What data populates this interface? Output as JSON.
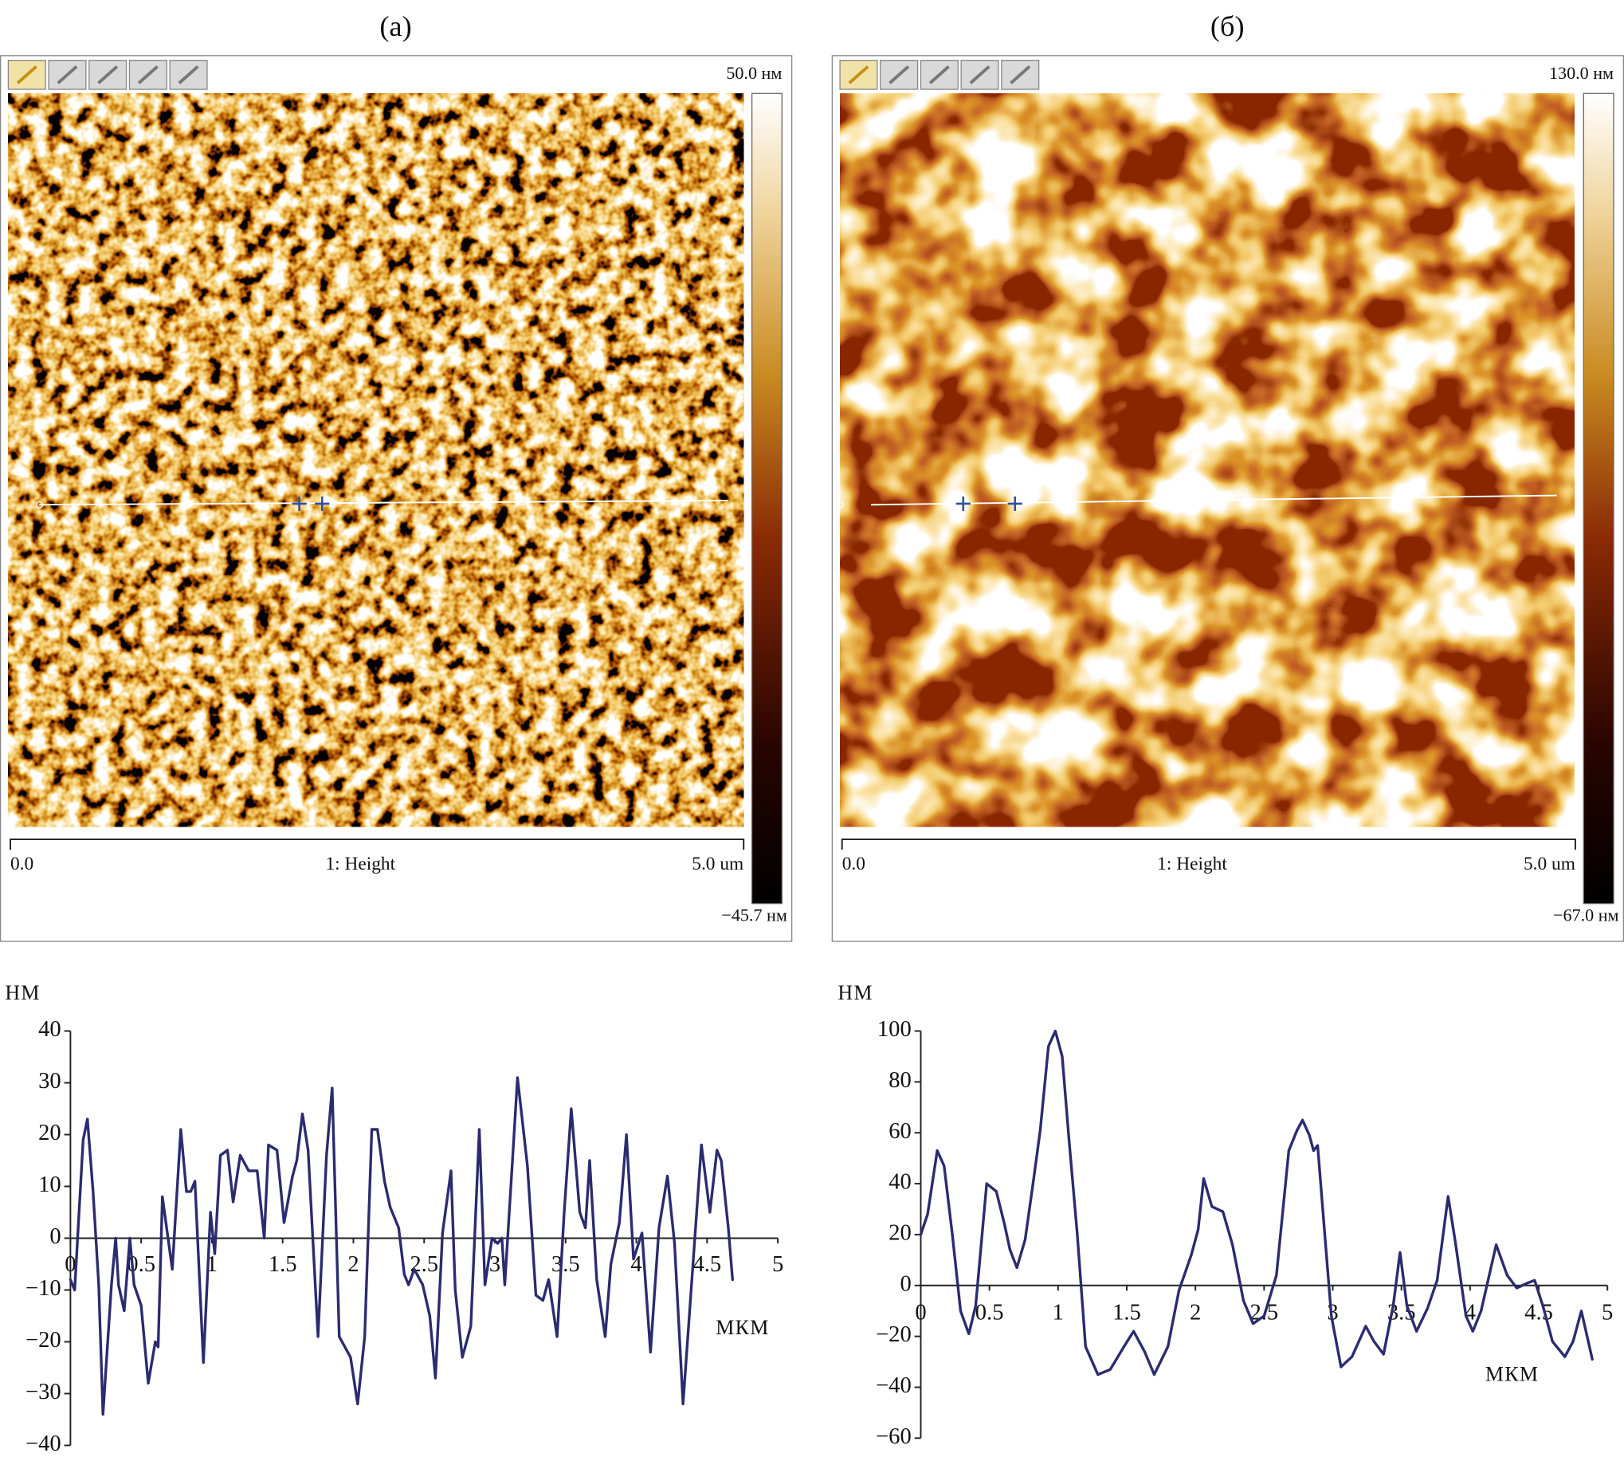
{
  "panels": [
    {
      "label": "(a)",
      "scale_max": "50.0 нм",
      "scale_min": "−45.7 нм",
      "axis_start": "0.0",
      "channel": "1: Height",
      "axis_end": "5.0 um"
    },
    {
      "label": "(б)",
      "scale_max": "130.0 нм",
      "scale_min": "−67.0 нм",
      "axis_start": "0.0",
      "channel": "1: Height",
      "axis_end": "5.0 um"
    }
  ],
  "chart_data": [
    {
      "type": "line",
      "y_label": "НМ",
      "x_label": "МКМ",
      "color": "#2b2b70",
      "xlim": [
        0,
        5
      ],
      "ylim": [
        -40,
        40
      ],
      "xticks": [
        0,
        0.5,
        1,
        1.5,
        2,
        2.5,
        3,
        3.5,
        4,
        4.5,
        5
      ],
      "yticks": [
        40,
        30,
        20,
        10,
        0,
        {
          "value": -10,
          "label": "−10"
        },
        {
          "value": -20,
          "label": "−20"
        },
        {
          "value": -30,
          "label": "−30"
        },
        {
          "value": -40,
          "label": "−40"
        }
      ],
      "x": [
        0,
        0.03,
        0.09,
        0.12,
        0.16,
        0.2,
        0.23,
        0.29,
        0.32,
        0.34,
        0.38,
        0.42,
        0.45,
        0.5,
        0.55,
        0.6,
        0.62,
        0.65,
        0.67,
        0.72,
        0.78,
        0.82,
        0.85,
        0.88,
        0.94,
        0.99,
        1.02,
        1.06,
        1.11,
        1.15,
        1.2,
        1.26,
        1.32,
        1.37,
        1.4,
        1.46,
        1.51,
        1.57,
        1.6,
        1.64,
        1.68,
        1.75,
        1.81,
        1.85,
        1.9,
        1.98,
        2.03,
        2.08,
        2.13,
        2.17,
        2.22,
        2.26,
        2.32,
        2.36,
        2.39,
        2.43,
        2.49,
        2.54,
        2.58,
        2.63,
        2.69,
        2.72,
        2.77,
        2.83,
        2.89,
        2.93,
        2.98,
        3.02,
        3.05,
        3.07,
        3.12,
        3.16,
        3.23,
        3.29,
        3.34,
        3.38,
        3.44,
        3.49,
        3.54,
        3.6,
        3.64,
        3.67,
        3.72,
        3.78,
        3.82,
        3.88,
        3.93,
        3.98,
        4.04,
        4.1,
        4.16,
        4.22,
        4.27,
        4.33,
        4.39,
        4.46,
        4.52,
        4.57,
        4.6,
        4.65,
        4.68
      ],
      "values": [
        -8,
        -10,
        19,
        23,
        9,
        -9,
        -34,
        -9,
        0,
        -9,
        -14,
        0,
        -9,
        -13,
        -28,
        -20,
        -21,
        8,
        4,
        -6,
        21,
        9,
        9,
        11,
        -24,
        5,
        -3,
        16,
        17,
        7,
        16,
        13,
        13,
        0,
        18,
        17,
        3,
        12,
        15,
        24,
        17,
        -19,
        16,
        29,
        -19,
        -23,
        -32,
        -19,
        21,
        21,
        11,
        6,
        2,
        -7,
        -9,
        -6,
        -9,
        -15,
        -27,
        1,
        13,
        -10,
        -23,
        -17,
        21,
        -9,
        0,
        -1,
        0,
        -9,
        13,
        31,
        14,
        -11,
        -12,
        -8,
        -19,
        5,
        25,
        5,
        2,
        15,
        -8,
        -19,
        -5,
        3,
        20,
        -4,
        1,
        -22,
        2,
        12,
        -1,
        -32,
        -9,
        18,
        5,
        17,
        15,
        2,
        -8
      ]
    },
    {
      "type": "line",
      "y_label": "НМ",
      "x_label": "МКМ",
      "color": "#2b2b70",
      "xlim": [
        0,
        5
      ],
      "ylim": [
        -60,
        100
      ],
      "xticks": [
        0,
        0.5,
        1,
        1.5,
        2,
        2.5,
        3,
        3.5,
        4,
        4.5,
        5
      ],
      "yticks": [
        100,
        80,
        60,
        40,
        20,
        0,
        {
          "value": -20,
          "label": "−20"
        },
        {
          "value": -40,
          "label": "−40"
        },
        {
          "value": -60,
          "label": "−60"
        }
      ],
      "x": [
        0,
        0.05,
        0.12,
        0.17,
        0.23,
        0.29,
        0.35,
        0.4,
        0.48,
        0.55,
        0.61,
        0.65,
        0.7,
        0.76,
        0.82,
        0.87,
        0.93,
        0.98,
        1.03,
        1.08,
        1.14,
        1.2,
        1.29,
        1.38,
        1.48,
        1.55,
        1.63,
        1.7,
        1.8,
        1.88,
        1.97,
        2.02,
        2.06,
        2.12,
        2.2,
        2.27,
        2.35,
        2.42,
        2.5,
        2.59,
        2.68,
        2.74,
        2.78,
        2.83,
        2.86,
        2.89,
        2.93,
        2.99,
        3.06,
        3.14,
        3.24,
        3.3,
        3.37,
        3.44,
        3.49,
        3.54,
        3.61,
        3.69,
        3.76,
        3.84,
        3.89,
        3.97,
        4.02,
        4.08,
        4.19,
        4.27,
        4.34,
        4.42,
        4.47,
        4.53,
        4.6,
        4.69,
        4.75,
        4.81,
        4.89
      ],
      "values": [
        20,
        28,
        53,
        47,
        20,
        -10,
        -19,
        -8,
        40,
        37,
        24,
        14,
        7,
        18,
        41,
        61,
        94,
        100,
        90,
        57,
        20,
        -24,
        -35,
        -33,
        -24,
        -18,
        -26,
        -35,
        -24,
        -2,
        12,
        22,
        42,
        31,
        29,
        16,
        -6,
        -15,
        -12,
        4,
        53,
        61,
        65,
        59,
        53,
        55,
        28,
        -12,
        -32,
        -28,
        -16,
        -22,
        -27,
        -8,
        13,
        -8,
        -18,
        -9,
        2,
        35,
        18,
        -12,
        -18,
        -10,
        16,
        4,
        -1,
        1,
        2,
        -8,
        -22,
        -28,
        -22,
        -10,
        -29
      ]
    }
  ]
}
